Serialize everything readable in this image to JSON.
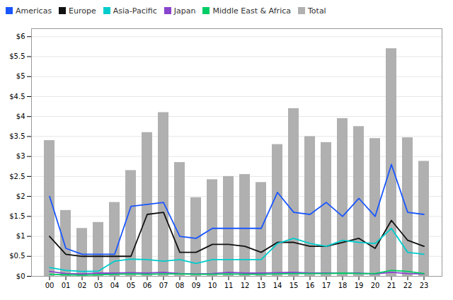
{
  "chart_data": {
    "type": "bar",
    "categories": [
      "00",
      "01",
      "02",
      "03",
      "04",
      "05",
      "06",
      "07",
      "08",
      "09",
      "10",
      "11",
      "12",
      "13",
      "14",
      "15",
      "16",
      "17",
      "18",
      "19",
      "20",
      "21",
      "22",
      "23"
    ],
    "series": [
      {
        "name": "Americas",
        "type": "line",
        "color": "#1a56ff",
        "values": [
          2.0,
          0.7,
          0.55,
          0.55,
          0.55,
          1.75,
          1.8,
          1.85,
          1.0,
          0.95,
          1.2,
          1.2,
          1.2,
          1.2,
          2.1,
          1.6,
          1.55,
          1.85,
          1.5,
          1.95,
          1.5,
          2.8,
          1.6,
          1.55
        ]
      },
      {
        "name": "Europe",
        "type": "line",
        "color": "#111111",
        "values": [
          1.0,
          0.55,
          0.5,
          0.5,
          0.5,
          0.5,
          1.55,
          1.6,
          0.6,
          0.6,
          0.8,
          0.8,
          0.75,
          0.6,
          0.85,
          0.85,
          0.75,
          0.75,
          0.85,
          0.95,
          0.7,
          1.4,
          0.9,
          0.75
        ]
      },
      {
        "name": "Asia-Pacific",
        "type": "line",
        "color": "#00cccc",
        "values": [
          0.22,
          0.15,
          0.12,
          0.13,
          0.38,
          0.43,
          0.42,
          0.38,
          0.42,
          0.32,
          0.42,
          0.42,
          0.42,
          0.42,
          0.82,
          0.95,
          0.82,
          0.75,
          0.9,
          0.85,
          0.82,
          1.2,
          0.6,
          0.55
        ]
      },
      {
        "name": "Japan",
        "type": "line",
        "color": "#8844cc",
        "values": [
          0.12,
          0.07,
          0.06,
          0.08,
          0.08,
          0.09,
          0.08,
          0.1,
          0.07,
          0.06,
          0.07,
          0.1,
          0.08,
          0.08,
          0.09,
          0.1,
          0.08,
          0.08,
          0.08,
          0.08,
          0.06,
          0.1,
          0.07,
          0.06
        ]
      },
      {
        "name": "Middle East & Africa",
        "type": "line",
        "color": "#00cc66",
        "values": [
          0.05,
          0.04,
          0.03,
          0.04,
          0.05,
          0.06,
          0.05,
          0.06,
          0.06,
          0.05,
          0.05,
          0.06,
          0.05,
          0.05,
          0.06,
          0.07,
          0.07,
          0.07,
          0.08,
          0.07,
          0.07,
          0.15,
          0.12,
          0.07
        ]
      },
      {
        "name": "Total",
        "type": "bar",
        "color": "#b0b0b0",
        "values": [
          3.4,
          1.65,
          1.2,
          1.35,
          1.85,
          2.65,
          3.6,
          4.1,
          2.85,
          1.97,
          2.42,
          2.5,
          2.55,
          2.35,
          3.3,
          4.2,
          3.5,
          3.35,
          3.95,
          3.75,
          3.45,
          5.7,
          3.47,
          2.88
        ]
      }
    ],
    "ylim": [
      0,
      6.2
    ],
    "yticks": [
      {
        "value": 0,
        "label": "$0"
      },
      {
        "value": 0.5,
        "label": "$0.5"
      },
      {
        "value": 1.0,
        "label": "$1"
      },
      {
        "value": 1.5,
        "label": "$1.5"
      },
      {
        "value": 2.0,
        "label": "$2"
      },
      {
        "value": 2.5,
        "label": "$2.5"
      },
      {
        "value": 3.0,
        "label": "$3"
      },
      {
        "value": 3.5,
        "label": "$3.5"
      },
      {
        "value": 4.0,
        "label": "$4"
      },
      {
        "value": 4.5,
        "label": "$4.5"
      },
      {
        "value": 5.0,
        "label": "$5"
      },
      {
        "value": 5.5,
        "label": "$5.5"
      },
      {
        "value": 6.0,
        "label": "$6"
      }
    ],
    "grid": true,
    "legend": "upper left"
  }
}
